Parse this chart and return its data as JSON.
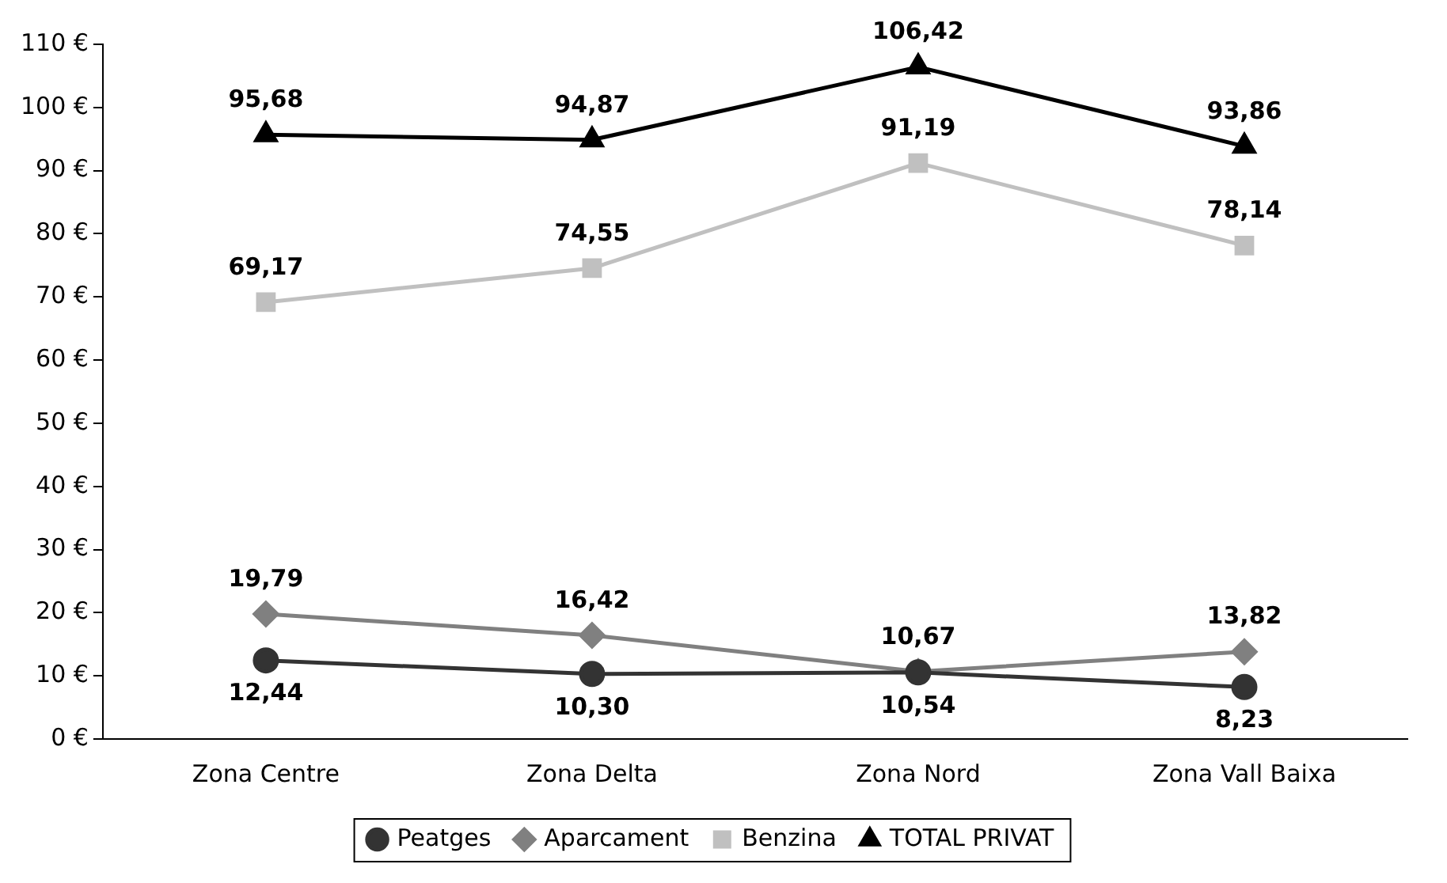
{
  "chart_data": {
    "type": "line",
    "categories": [
      "Zona Centre",
      "Zona Delta",
      "Zona Nord",
      "Zona Vall Baixa"
    ],
    "ylim": [
      0,
      110
    ],
    "yticks": [
      {
        "value": 0,
        "label": "0 €"
      },
      {
        "value": 10,
        "label": "10 €"
      },
      {
        "value": 20,
        "label": "20 €"
      },
      {
        "value": 30,
        "label": "30 €"
      },
      {
        "value": 40,
        "label": "40 €"
      },
      {
        "value": 50,
        "label": "50 €"
      },
      {
        "value": 60,
        "label": "60 €"
      },
      {
        "value": 70,
        "label": "70 €"
      },
      {
        "value": 80,
        "label": "80 €"
      },
      {
        "value": 90,
        "label": "90 €"
      },
      {
        "value": 100,
        "label": "100 €"
      },
      {
        "value": 110,
        "label": "110 €"
      }
    ],
    "grid": false,
    "legend": "bottom",
    "line_style": "solid",
    "series": [
      {
        "name": "Peatges",
        "color": "#333333",
        "marker": "circle",
        "values": [
          12.44,
          10.3,
          10.54,
          8.23
        ],
        "value_labels": [
          "12,44",
          "10,30",
          "10,54",
          "8,23"
        ]
      },
      {
        "name": "Aparcament",
        "color": "#808080",
        "marker": "diamond",
        "values": [
          19.79,
          16.42,
          10.67,
          13.82
        ],
        "value_labels": [
          "19,79",
          "16,42",
          "10,67",
          "13,82"
        ]
      },
      {
        "name": "Benzina",
        "color": "#c0c0c0",
        "marker": "square",
        "values": [
          69.17,
          74.55,
          91.19,
          78.14
        ],
        "value_labels": [
          "69,17",
          "74,55",
          "91,19",
          "78,14"
        ]
      },
      {
        "name": "TOTAL PRIVAT",
        "color": "#000000",
        "marker": "triangle",
        "values": [
          95.68,
          94.87,
          106.42,
          93.86
        ],
        "value_labels": [
          "95,68",
          "94,87",
          "106,42",
          "93,86"
        ]
      }
    ]
  }
}
